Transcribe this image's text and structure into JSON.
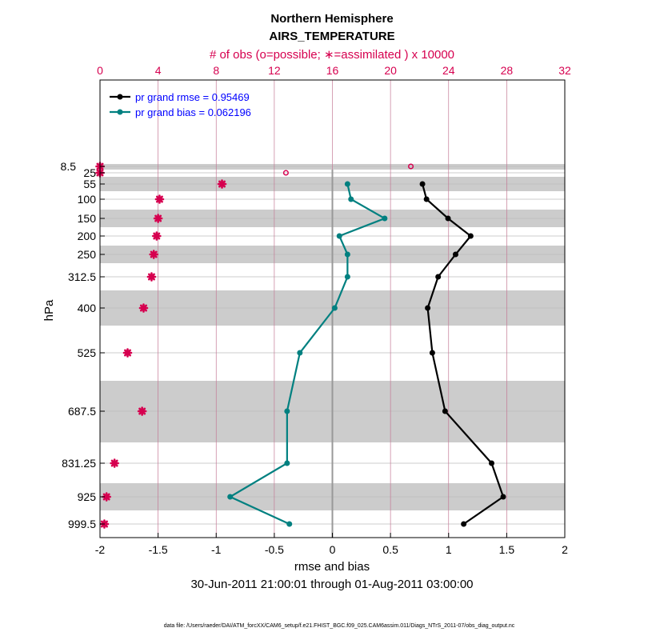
{
  "chart_data": {
    "type": "line",
    "title": "Northern Hemisphere",
    "subtitle": "AIRS_TEMPERATURE",
    "top_axis_label": "# of obs (o=possible; ∗=assimilated ) x 10000",
    "xlabel": "rmse and bias",
    "ylabel": "hPa",
    "date_range": "30-Jun-2011 21:00:01 through 01-Aug-2011 03:00:00",
    "footnote": "data file: /Users/raeder/DAI/ATM_forcXX/CAM6_setup/f.e21.FHIST_BGC.f09_025.CAM6assim.011/Diags_NTrS_2011-07/obs_diag_output.nc",
    "xlim": [
      -2,
      2
    ],
    "xticks": [
      "-2",
      "-1.5",
      "-1",
      "-0.5",
      "0",
      "0.5",
      "1",
      "1.5",
      "2"
    ],
    "top_xlim": [
      0,
      32
    ],
    "top_xticks": [
      "0",
      "4",
      "8",
      "12",
      "16",
      "20",
      "24",
      "28",
      "32"
    ],
    "levels": [
      "8.5",
      "25",
      "55",
      "100",
      "150",
      "200",
      "250",
      "312.5",
      "400",
      "525",
      "687.5",
      "831.25",
      "925",
      "999.5"
    ],
    "series": [
      {
        "name": "pr grand rmse = 0.95469",
        "color": "#000000",
        "levels": [
          "55",
          "100",
          "150",
          "200",
          "250",
          "312.5",
          "400",
          "525",
          "687.5",
          "831.25",
          "925",
          "999.5"
        ],
        "values": [
          0.775,
          0.81,
          0.995,
          1.19,
          1.06,
          0.91,
          0.82,
          0.86,
          0.97,
          1.37,
          1.47,
          1.13
        ]
      },
      {
        "name": "pr grand bias = 0.062196",
        "color": "#008080",
        "levels": [
          "55",
          "100",
          "150",
          "200",
          "250",
          "312.5",
          "400",
          "525",
          "687.5",
          "831.25",
          "925",
          "999.5"
        ],
        "values": [
          0.13,
          0.16,
          0.45,
          0.06,
          0.13,
          0.13,
          0.02,
          -0.28,
          -0.39,
          -0.39,
          -0.88,
          -0.37
        ]
      }
    ],
    "obs_assimilated": {
      "levels": [
        "8.5",
        "25",
        "55",
        "100",
        "150",
        "200",
        "250",
        "312.5",
        "400",
        "525",
        "687.5",
        "831.25",
        "925",
        "999.5"
      ],
      "values": [
        0,
        0,
        8.4,
        4.1,
        4.0,
        3.9,
        3.7,
        3.55,
        3.0,
        1.9,
        2.9,
        1.0,
        0.45,
        0.3
      ]
    },
    "obs_possible": {
      "levels": [
        "8.5",
        "25"
      ],
      "values": [
        21.4,
        12.8
      ]
    },
    "colors": {
      "obs": "#d6004f",
      "grid_obs": "#c47a96",
      "band": "#cccccc"
    }
  }
}
